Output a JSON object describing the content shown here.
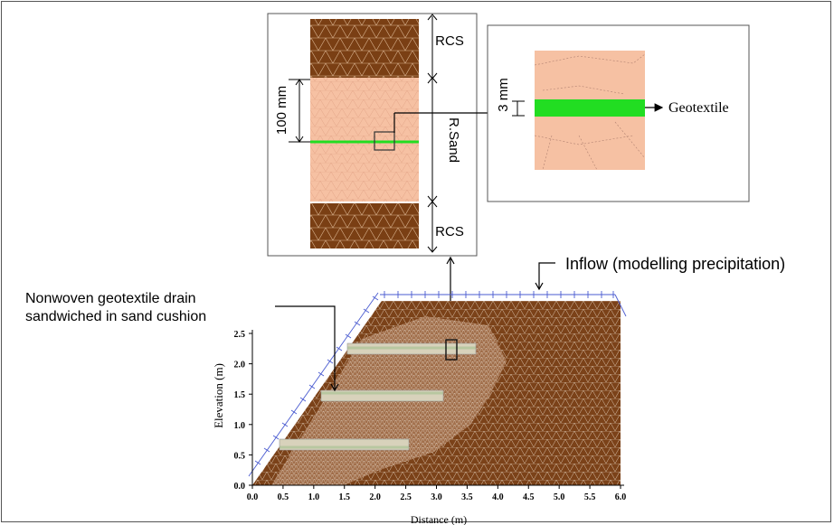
{
  "figure": {
    "labels": {
      "rcs_top": "RCS",
      "rcs_bottom": "RCS",
      "r_sand": "R.Sand",
      "hundred_mm": "100 mm",
      "three_mm": "3 mm",
      "geotextile": "Geotextile",
      "inflow": "Inflow (modelling precipitation)",
      "drain_line1": "Nonwoven geotextile drain",
      "drain_line2": "sandwiched in sand cushion"
    },
    "plot": {
      "ylabel": "Elevation (m)",
      "xlabel": "Distance (m)",
      "x_ticks": [
        "0.0",
        "0.5",
        "1.0",
        "1.5",
        "2.0",
        "2.5",
        "3.0",
        "3.5",
        "4.0",
        "4.5",
        "5.0",
        "5.5",
        "6.0"
      ],
      "y_ticks": [
        "0.0",
        "0.5",
        "1.0",
        "1.5",
        "2.0",
        "2.5"
      ]
    },
    "colors": {
      "rcs": "#7a3f14",
      "sand": "#f6c1a3",
      "geotextile_green": "#22dd22",
      "mesh_line": "#f2e6d8",
      "boundary_blue": "#4a5bd0"
    }
  }
}
